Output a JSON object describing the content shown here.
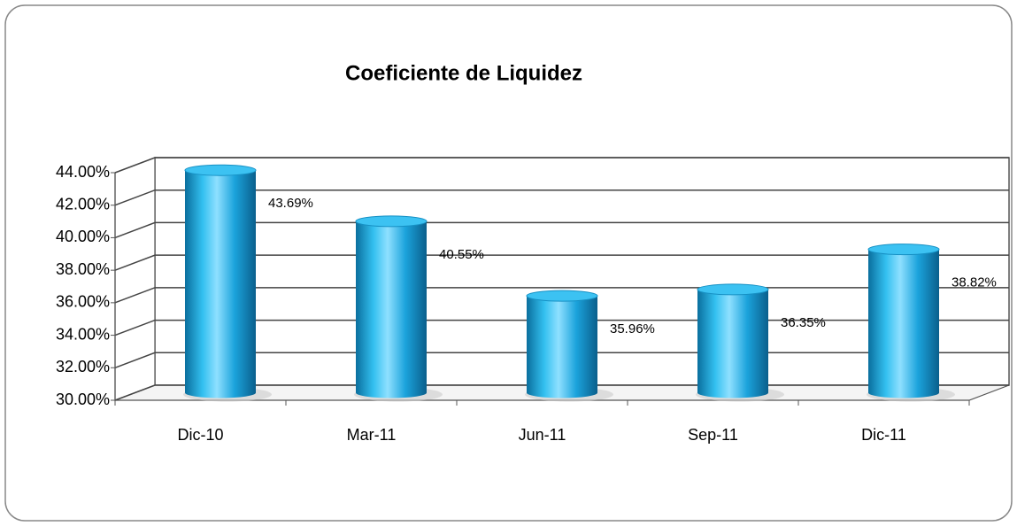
{
  "chart_data": {
    "type": "bar",
    "title": "Coeficiente de Liquidez",
    "categories": [
      "Dic-10",
      "Mar-11",
      "Jun-11",
      "Sep-11",
      "Dic-11"
    ],
    "values": [
      43.69,
      40.55,
      35.96,
      36.35,
      38.82
    ],
    "value_labels": [
      "43.69%",
      "40.55%",
      "35.96%",
      "36.35%",
      "38.82%"
    ],
    "color": "#1ba3dc",
    "ylim": [
      30,
      44
    ],
    "yticks": [
      {
        "value": 30,
        "label": "30.00%"
      },
      {
        "value": 32,
        "label": "32.00%"
      },
      {
        "value": 34,
        "label": "34.00%"
      },
      {
        "value": 36,
        "label": "36.00%"
      },
      {
        "value": 38,
        "label": "38.00%"
      },
      {
        "value": 40,
        "label": "40.00%"
      },
      {
        "value": 42,
        "label": "42.00%"
      },
      {
        "value": 44,
        "label": "44.00%"
      }
    ],
    "grid": true
  }
}
